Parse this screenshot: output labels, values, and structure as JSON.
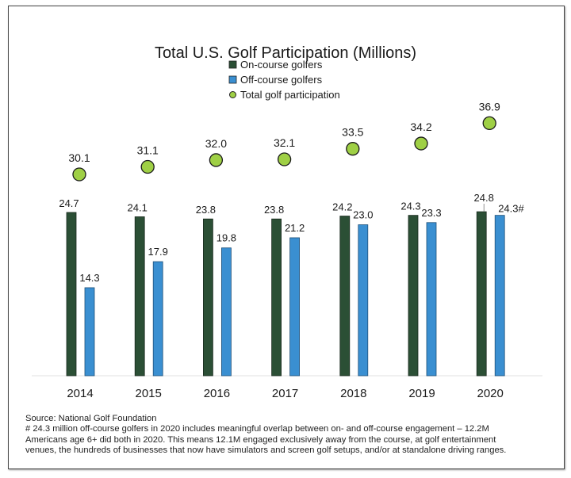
{
  "chart_data": {
    "type": "bar",
    "title": "Total U.S. Golf Participation (Millions)",
    "xlabel": "",
    "ylabel": "",
    "categories": [
      "2014",
      "2015",
      "2016",
      "2017",
      "2018",
      "2019",
      "2020"
    ],
    "series": [
      {
        "name": "On-course golfers",
        "kind": "bar",
        "color": "#2b4f35",
        "values": [
          24.7,
          24.1,
          23.8,
          23.8,
          24.2,
          24.3,
          24.8
        ],
        "labels": [
          "24.7",
          "24.1",
          "23.8",
          "23.8",
          "24.2",
          "24.3",
          "24.8"
        ]
      },
      {
        "name": "Off-course golfers",
        "kind": "bar",
        "color": "#3a8fd1",
        "values": [
          14.3,
          17.9,
          19.8,
          21.2,
          23.0,
          23.3,
          24.3
        ],
        "labels": [
          "14.3",
          "17.9",
          "19.8",
          "21.2",
          "23.0",
          "23.3",
          "24.3#"
        ]
      },
      {
        "name": "Total golf participation",
        "kind": "point",
        "color": "#9fd045",
        "values": [
          30.1,
          31.1,
          32.0,
          32.1,
          33.5,
          34.2,
          36.9
        ],
        "labels": [
          "30.1",
          "31.1",
          "32.0",
          "32.1",
          "33.5",
          "34.2",
          "36.9"
        ]
      }
    ],
    "legend": [
      "On-course golfers",
      "Off-course golfers",
      "Total golf participation"
    ],
    "legend_position": "top-center",
    "grid": false
  },
  "notes": {
    "source": "Source: National Golf Foundation",
    "footnote_lines": [
      "# 24.3 million off-course golfers in 2020 includes meaningful overlap between on- and off-course engagement – 12.2M",
      "Americans age 6+ did both in 2020. This means 12.1M engaged exclusively away from the course, at golf entertainment",
      "venues, the hundreds of businesses that now have simulators and screen golf setups, and/or at standalone driving ranges."
    ]
  }
}
